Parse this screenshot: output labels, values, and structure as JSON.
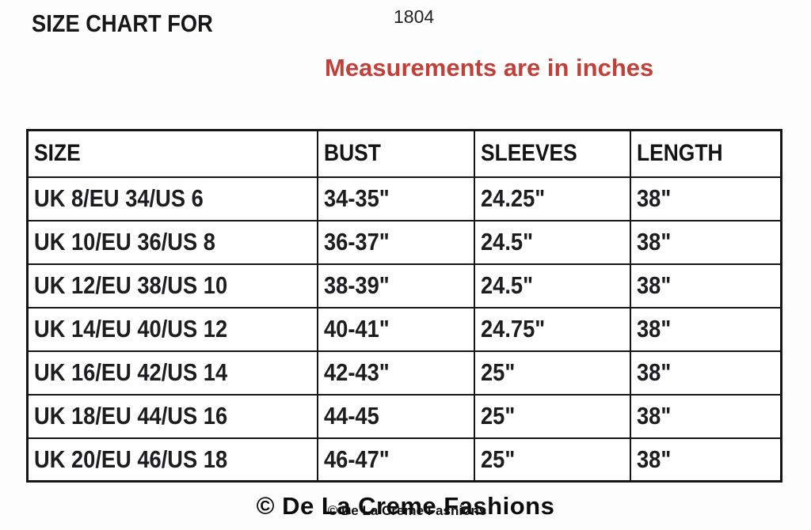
{
  "page": {
    "title": "SIZE CHART FOR",
    "style_number": "1804",
    "note": "Measurements are in inches"
  },
  "colors": {
    "note_red": "#c0403a",
    "table_border": "#161616",
    "text": "#1d1d20",
    "background": "#fdfdfd"
  },
  "table": {
    "columns": [
      "SIZE",
      "BUST",
      "SLEEVES",
      "LENGTH"
    ],
    "rows": [
      {
        "size": "UK 8/EU 34/US 6",
        "bust": "34-35\"",
        "sleeves": "24.25\"",
        "length": "38\""
      },
      {
        "size": "UK 10/EU 36/US 8",
        "bust": "36-37\"",
        "sleeves": "24.5\"",
        "length": "38\""
      },
      {
        "size": "UK 12/EU 38/US 10",
        "bust": "38-39\"",
        "sleeves": "24.5\"",
        "length": "38\""
      },
      {
        "size": "UK 14/EU 40/US 12",
        "bust": "40-41\"",
        "sleeves": "24.75\"",
        "length": "38\""
      },
      {
        "size": "UK 16/EU 42/US 14",
        "bust": "42-43\"",
        "sleeves": "25\"",
        "length": "38\""
      },
      {
        "size": "UK 18/EU 44/US 16",
        "bust": "44-45",
        "sleeves": "25\"",
        "length": "38\""
      },
      {
        "size": "UK 20/EU 46/US 18",
        "bust": "46-47\"",
        "sleeves": "25\"",
        "length": "38\""
      }
    ]
  },
  "footer": {
    "watermark_large": "© De La Creme Fashions",
    "watermark_small": "© De La Creme Fashions"
  }
}
